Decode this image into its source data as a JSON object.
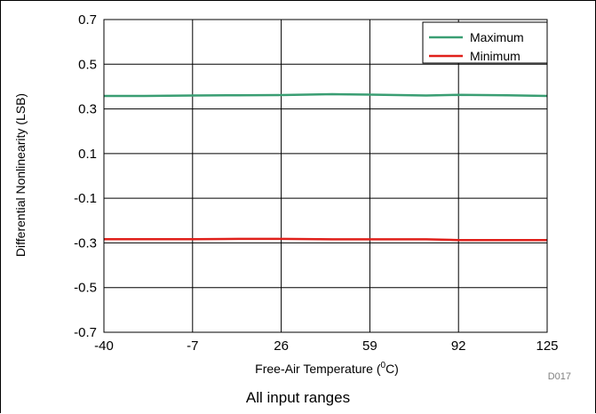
{
  "chart_data": {
    "type": "line",
    "title": "",
    "xlabel": "Free-Air Temperature (",
    "xlabel_sup": "0",
    "xlabel_suffix": "C)",
    "ylabel": "Differential Nonlinearity (LSB)",
    "x_ticks": [
      "-40",
      "-7",
      "26",
      "59",
      "92",
      "125"
    ],
    "y_ticks": [
      "0.7",
      "0.5",
      "0.3",
      "0.1",
      "-0.1",
      "-0.3",
      "-0.5",
      "-0.7"
    ],
    "xlim": [
      -40,
      125
    ],
    "ylim": [
      -0.7,
      0.7
    ],
    "grid": true,
    "legend_position": "top-right",
    "series": [
      {
        "name": "Maximum",
        "color": "#3a9e73",
        "x": [
          -40,
          -25,
          -7,
          10,
          26,
          45,
          59,
          80,
          92,
          110,
          125
        ],
        "y": [
          0.358,
          0.358,
          0.36,
          0.361,
          0.362,
          0.366,
          0.364,
          0.36,
          0.363,
          0.361,
          0.358
        ]
      },
      {
        "name": "Minimum",
        "color": "#e0201b",
        "x": [
          -40,
          -25,
          -7,
          10,
          26,
          45,
          59,
          80,
          92,
          110,
          125
        ],
        "y": [
          -0.283,
          -0.283,
          -0.283,
          -0.282,
          -0.282,
          -0.284,
          -0.284,
          -0.284,
          -0.287,
          -0.287,
          -0.287
        ]
      }
    ]
  },
  "figure_tag": "D017",
  "caption": "All input ranges"
}
